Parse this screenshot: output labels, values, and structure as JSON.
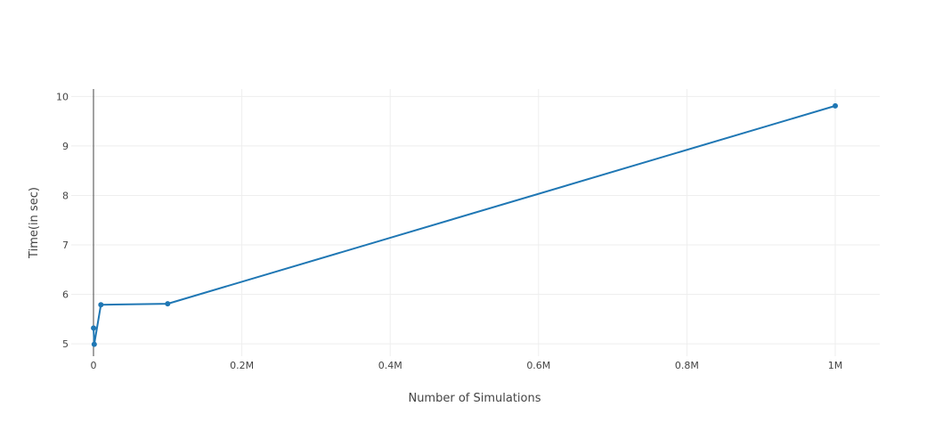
{
  "chart_data": {
    "type": "line",
    "xlabel": "Number of Simulations",
    "ylabel": "Time(in sec)",
    "xlim": [
      -30000,
      1060000
    ],
    "ylim": [
      4.75,
      10.15
    ],
    "x_ticks": [
      {
        "value": 0,
        "label": "0"
      },
      {
        "value": 200000,
        "label": "0.2M"
      },
      {
        "value": 400000,
        "label": "0.4M"
      },
      {
        "value": 600000,
        "label": "0.6M"
      },
      {
        "value": 800000,
        "label": "0.8M"
      },
      {
        "value": 1000000,
        "label": "1M"
      }
    ],
    "y_ticks": [
      {
        "value": 5,
        "label": "5"
      },
      {
        "value": 6,
        "label": "6"
      },
      {
        "value": 7,
        "label": "7"
      },
      {
        "value": 8,
        "label": "8"
      },
      {
        "value": 9,
        "label": "9"
      },
      {
        "value": 10,
        "label": "10"
      }
    ],
    "grid": true,
    "series": [
      {
        "color": "#1f77b4",
        "x": [
          100,
          1000,
          10000,
          100000,
          1000000
        ],
        "y": [
          5.32,
          4.99,
          5.79,
          5.81,
          9.81
        ]
      }
    ]
  }
}
